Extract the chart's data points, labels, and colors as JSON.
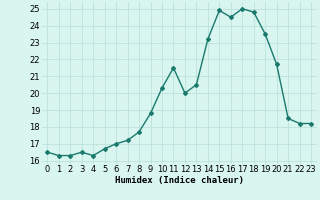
{
  "x": [
    0,
    1,
    2,
    3,
    4,
    5,
    6,
    7,
    8,
    9,
    10,
    11,
    12,
    13,
    14,
    15,
    16,
    17,
    18,
    19,
    20,
    21,
    22,
    23
  ],
  "y": [
    16.5,
    16.3,
    16.3,
    16.5,
    16.3,
    16.7,
    17.0,
    17.2,
    17.7,
    18.8,
    20.3,
    21.5,
    20.0,
    20.5,
    23.2,
    24.9,
    24.5,
    25.0,
    24.8,
    23.5,
    21.7,
    18.5,
    18.2,
    18.2
  ],
  "line_color": "#1a7a6e",
  "marker": "D",
  "marker_size": 2,
  "bg_color": "#d9f5f0",
  "grid_color": "#b8ddd8",
  "xlabel": "Humidex (Indice chaleur)",
  "ylim": [
    15.8,
    25.4
  ],
  "xlim": [
    -0.5,
    23.5
  ],
  "yticks": [
    16,
    17,
    18,
    19,
    20,
    21,
    22,
    23,
    24,
    25
  ],
  "xticks": [
    0,
    1,
    2,
    3,
    4,
    5,
    6,
    7,
    8,
    9,
    10,
    11,
    12,
    13,
    14,
    15,
    16,
    17,
    18,
    19,
    20,
    21,
    22,
    23
  ],
  "xlabel_fontsize": 6.5,
  "tick_fontsize": 6.0,
  "line_width": 1.0
}
